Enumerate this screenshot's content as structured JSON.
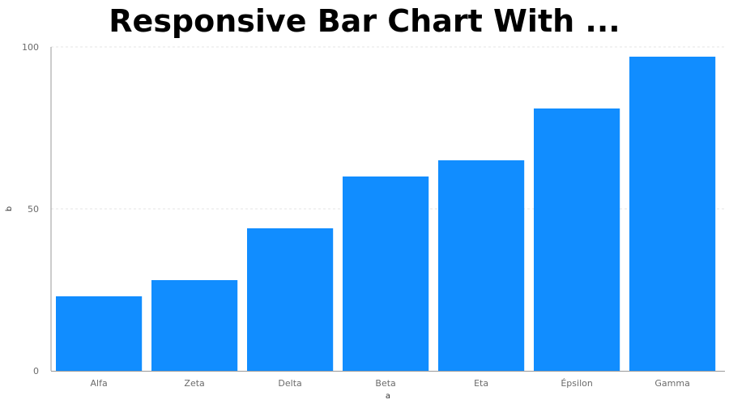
{
  "chart_data": {
    "type": "bar",
    "title": "Responsive Bar Chart With ...",
    "xlabel": "a",
    "ylabel": "b",
    "categories": [
      "Alfa",
      "Zeta",
      "Delta",
      "Beta",
      "Eta",
      "Épsilon",
      "Gamma"
    ],
    "values": [
      23,
      28,
      44,
      60,
      65,
      81,
      97
    ],
    "ylim": [
      0,
      100
    ],
    "yticks": [
      0,
      50,
      100
    ],
    "grid": true,
    "legend": "none",
    "colors": {
      "bar": "#118dff",
      "grid": "#e6e6e6",
      "axis": "#6b6b6b"
    }
  }
}
